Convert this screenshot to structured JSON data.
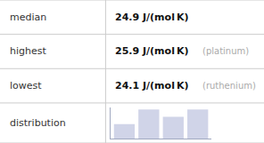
{
  "chart_data": {
    "type": "bar",
    "categories": [
      null,
      null,
      null,
      null
    ],
    "values": [
      1,
      2,
      1.5,
      2
    ],
    "color": "#d0d4e8",
    "ylim": [
      0,
      2.16
    ],
    "tick_labels": false,
    "grid": false,
    "annotations": [
      [
        "median",
        "24.9 J/(mol K)"
      ],
      [
        "highest",
        "25.9 J/(mol K)",
        "(platinum)"
      ],
      [
        "lowest",
        "24.1 J/(mol K)",
        "(ruthenium)"
      ],
      [
        "distribution"
      ]
    ]
  }
}
